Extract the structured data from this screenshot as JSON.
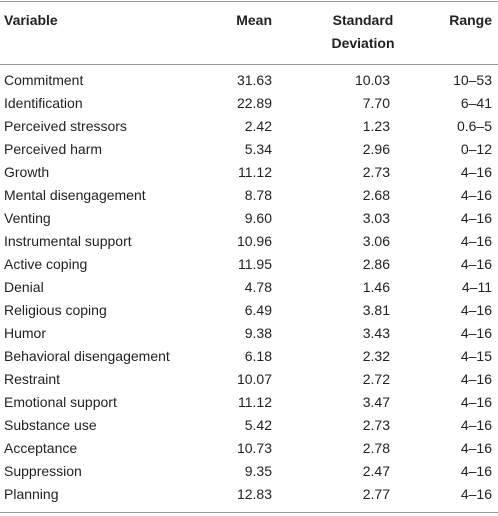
{
  "table": {
    "headers": {
      "variable": "Variable",
      "mean": "Mean",
      "std_line1": "Standard",
      "std_line2": "Deviation",
      "range": "Range"
    },
    "rows": [
      {
        "variable": "Commitment",
        "mean": "31.63",
        "std": "10.03",
        "range": "10–53"
      },
      {
        "variable": "Identification",
        "mean": "22.89",
        "std": "7.70",
        "range": "6–41"
      },
      {
        "variable": "Perceived stressors",
        "mean": "2.42",
        "std": "1.23",
        "range": "0.6–5"
      },
      {
        "variable": "Perceived harm",
        "mean": "5.34",
        "std": "2.96",
        "range": "0–12"
      },
      {
        "variable": "Growth",
        "mean": "11.12",
        "std": "2.73",
        "range": "4–16"
      },
      {
        "variable": "Mental disengagement",
        "mean": "8.78",
        "std": "2.68",
        "range": "4–16"
      },
      {
        "variable": "Venting",
        "mean": "9.60",
        "std": "3.03",
        "range": "4–16"
      },
      {
        "variable": "Instrumental support",
        "mean": "10.96",
        "std": "3.06",
        "range": "4–16"
      },
      {
        "variable": "Active coping",
        "mean": "11.95",
        "std": "2.86",
        "range": "4–16"
      },
      {
        "variable": "Denial",
        "mean": "4.78",
        "std": "1.46",
        "range": "4–11"
      },
      {
        "variable": "Religious coping",
        "mean": "6.49",
        "std": "3.81",
        "range": "4–16"
      },
      {
        "variable": "Humor",
        "mean": "9.38",
        "std": "3.43",
        "range": "4–16"
      },
      {
        "variable": "Behavioral disengagement",
        "mean": "6.18",
        "std": "2.32",
        "range": "4–15"
      },
      {
        "variable": "Restraint",
        "mean": "10.07",
        "std": "2.72",
        "range": "4–16"
      },
      {
        "variable": "Emotional support",
        "mean": "11.12",
        "std": "3.47",
        "range": "4–16"
      },
      {
        "variable": "Substance use",
        "mean": "5.42",
        "std": "2.73",
        "range": "4–16"
      },
      {
        "variable": "Acceptance",
        "mean": "10.73",
        "std": "2.78",
        "range": "4–16"
      },
      {
        "variable": "Suppression",
        "mean": "9.35",
        "std": "2.47",
        "range": "4–16"
      },
      {
        "variable": "Planning",
        "mean": "12.83",
        "std": "2.77",
        "range": "4–16"
      }
    ]
  }
}
